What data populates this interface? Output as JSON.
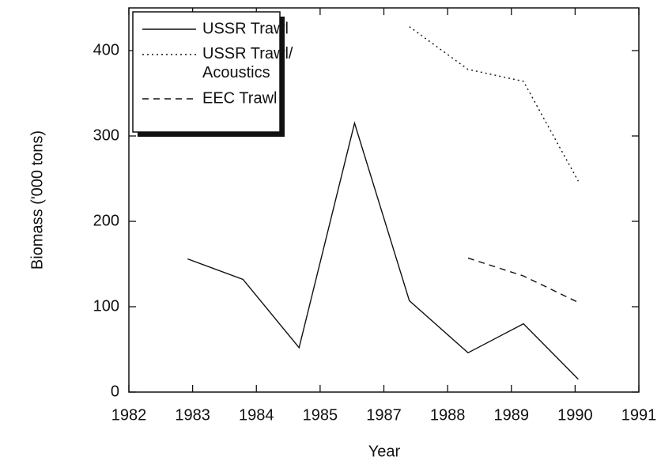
{
  "chart_data": {
    "type": "line",
    "x_label": "Year",
    "y_label": "Biomass ('000 tons)",
    "x": [
      0.92,
      1.79,
      2.67,
      3.54,
      4.4,
      5.32,
      6.19,
      7.05
    ],
    "series": [
      {
        "name": "USSR Trawl",
        "color": "#111111",
        "dash": "none",
        "values": [
          156,
          132,
          52,
          315,
          107,
          46,
          80,
          15
        ]
      },
      {
        "name": "USSR Trawl/ Acoustics",
        "color": "#111111",
        "dash": "2 4",
        "values": [
          null,
          null,
          null,
          null,
          428,
          378,
          364,
          247
        ]
      },
      {
        "name": "EEC Trawl",
        "color": "#111111",
        "dash": "8 6",
        "values": [
          null,
          null,
          null,
          null,
          null,
          157,
          136,
          105
        ]
      }
    ],
    "xlim": [
      0,
      8
    ],
    "xticks": [
      {
        "value": 0,
        "label": "1982"
      },
      {
        "value": 1,
        "label": "1983"
      },
      {
        "value": 2,
        "label": "1984"
      },
      {
        "value": 3,
        "label": "1985"
      },
      {
        "value": 4,
        "label": "1987"
      },
      {
        "value": 5,
        "label": "1988"
      },
      {
        "value": 6,
        "label": "1989"
      },
      {
        "value": 7,
        "label": "1990"
      },
      {
        "value": 8,
        "label": "1991"
      }
    ],
    "ylim": [
      0,
      450
    ],
    "yticks": [
      0,
      100,
      200,
      300,
      400
    ],
    "legend": "upper-left"
  }
}
